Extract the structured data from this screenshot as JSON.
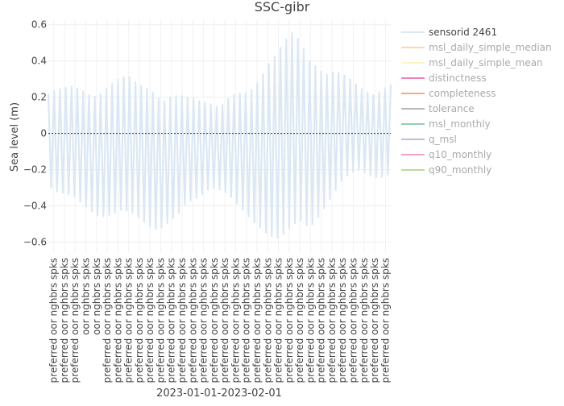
{
  "chart_data": {
    "type": "line",
    "title": "SSC-gibr",
    "xlabel": "2023-01-01-2023-02-01",
    "ylabel": "Sea level (m)",
    "ylim": [
      -0.66,
      0.63
    ],
    "yticks": [
      0.6,
      0.4,
      0.2,
      0,
      -0.2,
      -0.4,
      -0.6
    ],
    "ytick_labels": [
      "0.6",
      "0.4",
      "0.2",
      "0",
      "−0.2",
      "−0.4",
      "−0.6"
    ],
    "grid": true,
    "legend_position": "right",
    "xtick_labels": [
      "preferred oor nghbrs spks",
      "preferred oor nghbrs spks",
      "preferred oor nghbrs spks",
      "oor nghbrs spks",
      "oor nghbrs spks",
      "preferred oor nghbrs spks",
      "preferred oor nghbrs spks",
      "preferred oor nghbrs spks",
      "preferred oor nghbrs spks",
      "preferred oor nghbrs spks",
      "preferred oor nghbrs spks",
      "preferred oor nghbrs spks",
      "preferred oor nghbrs spks",
      "preferred oor nghbrs spks",
      "preferred oor nghbrs spks",
      "preferred oor nghbrs spks",
      "preferred oor nghbrs spks",
      "preferred oor nghbrs spks",
      "preferred oor nghbrs spks",
      "preferred oor nghbrs spks",
      "preferred oor nghbrs spks",
      "preferred oor nghbrs spks",
      "preferred oor nghbrs spks",
      "preferred oor nghbrs spks",
      "preferred oor nghbrs spks",
      "preferred oor nghbrs spks",
      "preferred oor nghbrs spks",
      "preferred oor nghbrs spks",
      "preferred oor nghbrs spks",
      "preferred oor nghbrs spks",
      "preferred oor nghbrs spks",
      "preferred oor nghbrs spks"
    ],
    "series": [
      {
        "name": "sensorid 2461",
        "color": "#dbe8f4",
        "envelope_high": [
          0.22,
          0.24,
          0.25,
          0.26,
          0.24,
          0.21,
          0.2,
          0.24,
          0.28,
          0.31,
          0.31,
          0.27,
          0.25,
          0.22,
          0.17,
          0.2,
          0.21,
          0.2,
          0.19,
          0.17,
          0.16,
          0.14,
          0.19,
          0.22,
          0.22,
          0.24,
          0.3,
          0.38,
          0.44,
          0.51,
          0.56,
          0.5,
          0.4,
          0.36,
          0.32,
          0.34,
          0.33,
          0.3,
          0.26,
          0.23,
          0.21,
          0.24,
          0.27
        ],
        "envelope_low": [
          -0.29,
          -0.32,
          -0.33,
          -0.34,
          -0.38,
          -0.42,
          -0.45,
          -0.46,
          -0.44,
          -0.42,
          -0.43,
          -0.46,
          -0.5,
          -0.53,
          -0.52,
          -0.48,
          -0.44,
          -0.38,
          -0.36,
          -0.33,
          -0.3,
          -0.31,
          -0.33,
          -0.38,
          -0.43,
          -0.48,
          -0.52,
          -0.56,
          -0.58,
          -0.55,
          -0.5,
          -0.48,
          -0.52,
          -0.47,
          -0.4,
          -0.33,
          -0.26,
          -0.22,
          -0.2,
          -0.22,
          -0.24,
          -0.24,
          -0.22
        ]
      },
      {
        "name": "msl_daily_simple_median",
        "color": "#fbd9b0"
      },
      {
        "name": "msl_daily_simple_mean",
        "color": "#fdf5c4"
      },
      {
        "name": "distinctness",
        "color": "#f080b8"
      },
      {
        "name": "completeness",
        "color": "#f4a98a"
      },
      {
        "name": "tolerance",
        "color": "#b8b8b8"
      },
      {
        "name": "msl_monthly",
        "color": "#8ed1ae"
      },
      {
        "name": "q_msl",
        "color": "#c8b8dc"
      },
      {
        "name": "q10_monthly",
        "color": "#f4a0cc"
      },
      {
        "name": "q90_monthly",
        "color": "#b8dc98"
      }
    ],
    "zero_line_color": "#333344"
  }
}
